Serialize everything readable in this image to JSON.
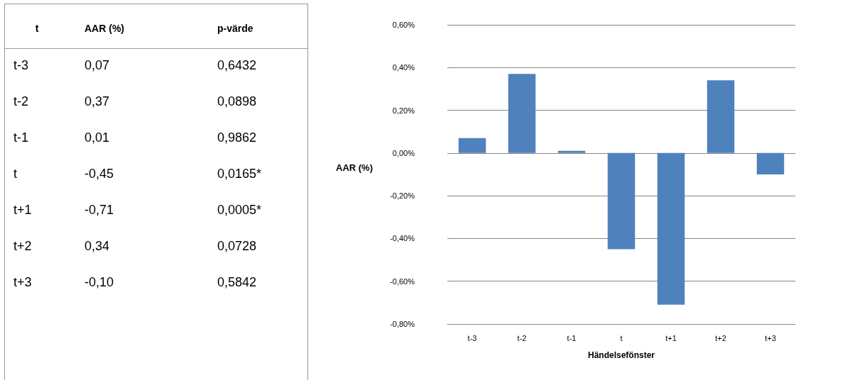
{
  "chart_data": [
    {
      "type": "other",
      "annotations": [
        "t",
        "AAR (%)",
        "p-värde",
        "t-3",
        "0,07",
        "0,6432",
        "t-2",
        "0,37",
        "0,0898",
        "t-1",
        "0,01",
        "0,9862",
        "t",
        "-0,45",
        "0,0165*",
        "t+1",
        "-0,71",
        "0,0005*",
        "t+2",
        "0,34",
        "0,0728",
        "t+3",
        "-0,10",
        "0,5842"
      ]
    },
    {
      "type": "bar",
      "ylabel": "AAR (%)",
      "xlabel": "Händelsefönster",
      "categories": [
        "t-3",
        "t-2",
        "t-1",
        "t",
        "t+1",
        "t+2",
        "t+3"
      ],
      "values": [
        0.07,
        0.37,
        0.01,
        -0.45,
        -0.71,
        0.34,
        -0.1
      ],
      "color": "#4f81bd",
      "ylim": [
        -0.8,
        0.6
      ],
      "yticks": [
        {
          "value": -0.8,
          "label": "-0,80%"
        },
        {
          "value": -0.6,
          "label": "-0,60%"
        },
        {
          "value": -0.4,
          "label": "-0,40%"
        },
        {
          "value": -0.2,
          "label": "-0,20%"
        },
        {
          "value": 0,
          "label": "0,00%"
        },
        {
          "value": 0.2,
          "label": "0,20%"
        },
        {
          "value": 0.4,
          "label": "0,40%"
        },
        {
          "value": 0.6,
          "label": "0,60%"
        }
      ],
      "grid": "y"
    }
  ]
}
